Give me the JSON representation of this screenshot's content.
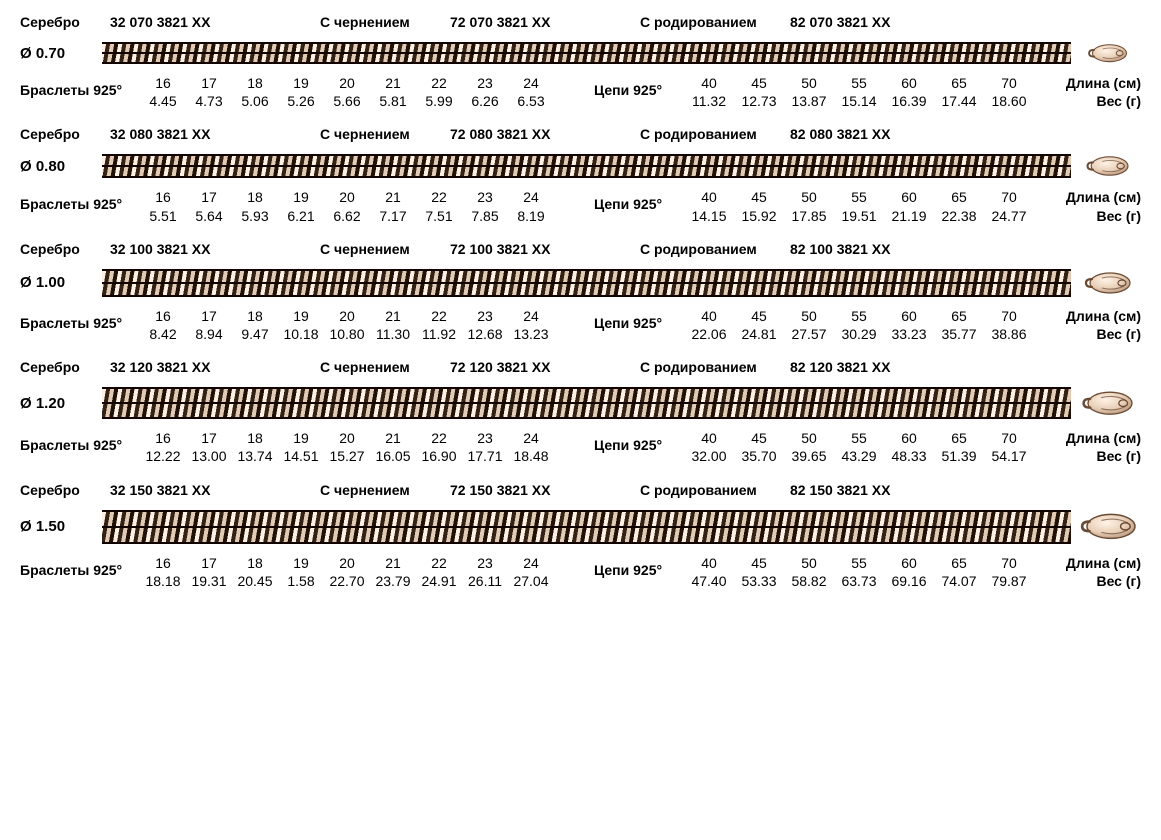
{
  "labels": {
    "silver": "Серебро",
    "blackened": "С чернением",
    "rhodium": "С родированием",
    "bracelets": "Браслеты 925°",
    "chains": "Цепи 925°",
    "length": "Длина (см)",
    "weight": "Вес (г)",
    "diam_prefix": "Ø"
  },
  "bracelet_lengths": [
    "16",
    "17",
    "18",
    "19",
    "20",
    "21",
    "22",
    "23",
    "24"
  ],
  "chain_lengths": [
    "40",
    "45",
    "50",
    "55",
    "60",
    "65",
    "70"
  ],
  "items": [
    {
      "diameter": "0.70",
      "chain_h": 18,
      "clasp_scale": 0.85,
      "codes": {
        "silver": "32 070 3821 XX",
        "black": "72 070 3821 XX",
        "rhod": "82 070 3821 XX"
      },
      "bracelet_weights": [
        "4.45",
        "4.73",
        "5.06",
        "5.26",
        "5.66",
        "5.81",
        "5.99",
        "6.26",
        "6.53"
      ],
      "chain_weights": [
        "11.32",
        "12.73",
        "13.87",
        "15.14",
        "16.39",
        "17.44",
        "18.60"
      ]
    },
    {
      "diameter": "0.80",
      "chain_h": 20,
      "clasp_scale": 0.92,
      "codes": {
        "silver": "32 080 3821 XX",
        "black": "72 080 3821 XX",
        "rhod": "82 080 3821 XX"
      },
      "bracelet_weights": [
        "5.51",
        "5.64",
        "5.93",
        "6.21",
        "6.62",
        "7.17",
        "7.51",
        "7.85",
        "8.19"
      ],
      "chain_weights": [
        "14.15",
        "15.92",
        "17.85",
        "19.51",
        "21.19",
        "22.38",
        "24.77"
      ]
    },
    {
      "diameter": "1.00",
      "chain_h": 24,
      "clasp_scale": 1.0,
      "codes": {
        "silver": "32 100 3821 XX",
        "black": "72 100 3821 XX",
        "rhod": "82 100 3821 XX"
      },
      "bracelet_weights": [
        "8.42",
        "8.94",
        "9.47",
        "10.18",
        "10.80",
        "11.30",
        "11.92",
        "12.68",
        "13.23"
      ],
      "chain_weights": [
        "22.06",
        "24.81",
        "27.57",
        "30.29",
        "33.23",
        "35.77",
        "38.86"
      ]
    },
    {
      "diameter": "1.20",
      "chain_h": 28,
      "clasp_scale": 1.1,
      "codes": {
        "silver": "32 120 3821 XX",
        "black": "72 120 3821 XX",
        "rhod": "82 120 3821 XX"
      },
      "bracelet_weights": [
        "12.22",
        "13.00",
        "13.74",
        "14.51",
        "15.27",
        "16.05",
        "16.90",
        "17.71",
        "18.48"
      ],
      "chain_weights": [
        "32.00",
        "35.70",
        "39.65",
        "43.29",
        "48.33",
        "51.39",
        "54.17"
      ]
    },
    {
      "diameter": "1.50",
      "chain_h": 30,
      "clasp_scale": 1.2,
      "codes": {
        "silver": "32 150 3821 XX",
        "black": "72 150 3821 XX",
        "rhod": "82 150 3821 XX"
      },
      "bracelet_weights": [
        "18.18",
        "19.31",
        "20.45",
        "1.58",
        "22.70",
        "23.79",
        "24.91",
        "26.11",
        "27.04"
      ],
      "chain_weights": [
        "47.40",
        "53.33",
        "58.82",
        "63.73",
        "69.16",
        "74.07",
        "79.87"
      ]
    }
  ],
  "colors": {
    "chain_dark": "#2a1a10",
    "chain_light": "#d9c4af",
    "clasp_fill": "#e8cfb8",
    "clasp_stroke": "#6b4a34"
  }
}
